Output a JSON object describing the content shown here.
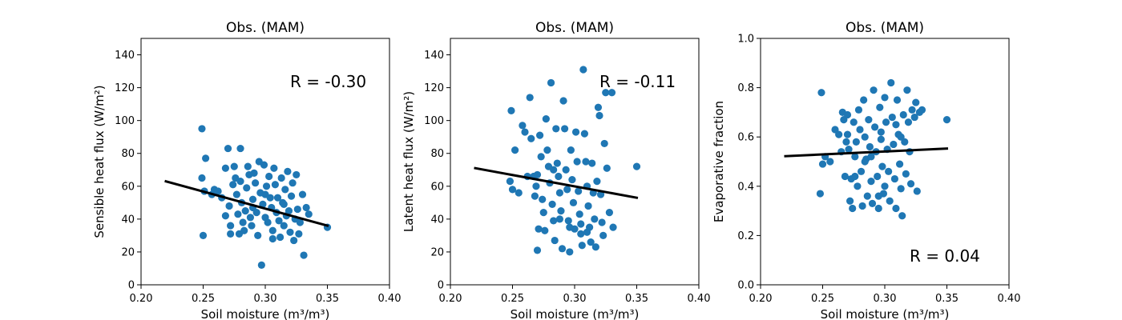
{
  "chart_data": [
    {
      "type": "scatter",
      "title": "Obs. (MAM)",
      "xlabel": "Soil moisture (m³/m³)",
      "ylabel": "Sensible heat flux (W/m²)",
      "xlim": [
        0.2,
        0.4
      ],
      "ylim": [
        0,
        150
      ],
      "xticks": [
        "0.20",
        "0.25",
        "0.30",
        "0.35",
        "0.40"
      ],
      "yticks": [
        "0",
        "20",
        "40",
        "60",
        "80",
        "100",
        "120",
        "140"
      ],
      "annotation": "R = -0.30",
      "annotation_position": "upper-right",
      "fit_line": {
        "x": [
          0.22,
          0.35
        ],
        "y": [
          63,
          36
        ]
      },
      "point_color": "#1f77b4",
      "points": [
        [
          0.249,
          95
        ],
        [
          0.252,
          77
        ],
        [
          0.249,
          65
        ],
        [
          0.25,
          30
        ],
        [
          0.251,
          57
        ],
        [
          0.257,
          55
        ],
        [
          0.259,
          58
        ],
        [
          0.262,
          57
        ],
        [
          0.265,
          53
        ],
        [
          0.268,
          71
        ],
        [
          0.27,
          83
        ],
        [
          0.271,
          48
        ],
        [
          0.272,
          36
        ],
        [
          0.272,
          31
        ],
        [
          0.274,
          61
        ],
        [
          0.275,
          72
        ],
        [
          0.276,
          65
        ],
        [
          0.277,
          55
        ],
        [
          0.278,
          43
        ],
        [
          0.279,
          31
        ],
        [
          0.28,
          83
        ],
        [
          0.281,
          50
        ],
        [
          0.282,
          38
        ],
        [
          0.283,
          33
        ],
        [
          0.284,
          45
        ],
        [
          0.285,
          59
        ],
        [
          0.286,
          72
        ],
        [
          0.287,
          67
        ],
        [
          0.288,
          41
        ],
        [
          0.289,
          36
        ],
        [
          0.29,
          52
        ],
        [
          0.291,
          68
        ],
        [
          0.292,
          62
        ],
        [
          0.293,
          44
        ],
        [
          0.294,
          30
        ],
        [
          0.295,
          75
        ],
        [
          0.296,
          56
        ],
        [
          0.297,
          12
        ],
        [
          0.298,
          49
        ],
        [
          0.299,
          73
        ],
        [
          0.3,
          41
        ],
        [
          0.301,
          60
        ],
        [
          0.302,
          38
        ],
        [
          0.303,
          66
        ],
        [
          0.304,
          53
        ],
        [
          0.305,
          47
        ],
        [
          0.306,
          33
        ],
        [
          0.307,
          71
        ],
        [
          0.308,
          61
        ],
        [
          0.309,
          44
        ],
        [
          0.31,
          53
        ],
        [
          0.311,
          39
        ],
        [
          0.312,
          29
        ],
        [
          0.313,
          65
        ],
        [
          0.314,
          50
        ],
        [
          0.315,
          36
        ],
        [
          0.316,
          58
        ],
        [
          0.317,
          42
        ],
        [
          0.318,
          69
        ],
        [
          0.319,
          45
        ],
        [
          0.32,
          32
        ],
        [
          0.321,
          54
        ],
        [
          0.322,
          62
        ],
        [
          0.323,
          27
        ],
        [
          0.324,
          40
        ],
        [
          0.325,
          67
        ],
        [
          0.326,
          46
        ],
        [
          0.327,
          31
        ],
        [
          0.328,
          38
        ],
        [
          0.33,
          55
        ],
        [
          0.331,
          18
        ],
        [
          0.333,
          47
        ],
        [
          0.335,
          43
        ],
        [
          0.35,
          35
        ],
        [
          0.268,
          42
        ],
        [
          0.28,
          63
        ],
        [
          0.29,
          47
        ],
        [
          0.3,
          55
        ],
        [
          0.306,
          28
        ],
        [
          0.315,
          49
        ]
      ]
    },
    {
      "type": "scatter",
      "title": "Obs. (MAM)",
      "xlabel": "Soil moisture (m³/m³)",
      "ylabel": "Latent heat flux (W/m²)",
      "xlim": [
        0.2,
        0.4
      ],
      "ylim": [
        0,
        150
      ],
      "xticks": [
        "0.20",
        "0.25",
        "0.30",
        "0.35",
        "0.40"
      ],
      "yticks": [
        "0",
        "20",
        "40",
        "60",
        "80",
        "100",
        "120",
        "140"
      ],
      "annotation": "R = -0.11",
      "annotation_position": "upper-right",
      "fit_line": {
        "x": [
          0.22,
          0.35
        ],
        "y": [
          71,
          53
        ]
      },
      "point_color": "#1f77b4",
      "points": [
        [
          0.249,
          106
        ],
        [
          0.252,
          82
        ],
        [
          0.248,
          63
        ],
        [
          0.25,
          58
        ],
        [
          0.255,
          56
        ],
        [
          0.258,
          97
        ],
        [
          0.26,
          93
        ],
        [
          0.262,
          66
        ],
        [
          0.264,
          114
        ],
        [
          0.265,
          89
        ],
        [
          0.267,
          66
        ],
        [
          0.268,
          54
        ],
        [
          0.269,
          60
        ],
        [
          0.27,
          21
        ],
        [
          0.271,
          34
        ],
        [
          0.272,
          91
        ],
        [
          0.273,
          78
        ],
        [
          0.274,
          52
        ],
        [
          0.275,
          44
        ],
        [
          0.276,
          33
        ],
        [
          0.277,
          101
        ],
        [
          0.278,
          82
        ],
        [
          0.279,
          72
        ],
        [
          0.28,
          62
        ],
        [
          0.281,
          123
        ],
        [
          0.282,
          49
        ],
        [
          0.283,
          39
        ],
        [
          0.284,
          27
        ],
        [
          0.285,
          95
        ],
        [
          0.286,
          74
        ],
        [
          0.287,
          66
        ],
        [
          0.288,
          56
        ],
        [
          0.289,
          45
        ],
        [
          0.29,
          22
        ],
        [
          0.291,
          112
        ],
        [
          0.292,
          95
        ],
        [
          0.293,
          70
        ],
        [
          0.294,
          58
        ],
        [
          0.295,
          39
        ],
        [
          0.296,
          20
        ],
        [
          0.297,
          82
        ],
        [
          0.298,
          64
        ],
        [
          0.299,
          50
        ],
        [
          0.3,
          34
        ],
        [
          0.301,
          93
        ],
        [
          0.302,
          75
        ],
        [
          0.303,
          57
        ],
        [
          0.304,
          43
        ],
        [
          0.305,
          31
        ],
        [
          0.306,
          24
        ],
        [
          0.307,
          131
        ],
        [
          0.308,
          92
        ],
        [
          0.309,
          75
        ],
        [
          0.31,
          60
        ],
        [
          0.311,
          48
        ],
        [
          0.312,
          35
        ],
        [
          0.313,
          26
        ],
        [
          0.314,
          74
        ],
        [
          0.315,
          56
        ],
        [
          0.316,
          40
        ],
        [
          0.317,
          23
        ],
        [
          0.318,
          63
        ],
        [
          0.319,
          108
        ],
        [
          0.32,
          103
        ],
        [
          0.321,
          55
        ],
        [
          0.322,
          38
        ],
        [
          0.323,
          30
        ],
        [
          0.324,
          86
        ],
        [
          0.325,
          117
        ],
        [
          0.326,
          71
        ],
        [
          0.328,
          44
        ],
        [
          0.33,
          117
        ],
        [
          0.331,
          35
        ],
        [
          0.35,
          72
        ],
        [
          0.27,
          67
        ],
        [
          0.288,
          40
        ],
        [
          0.305,
          37
        ],
        [
          0.296,
          35
        ],
        [
          0.283,
          70
        ],
        [
          0.31,
          32
        ]
      ]
    },
    {
      "type": "scatter",
      "title": "Obs. (MAM)",
      "xlabel": "Soil moisture (m³/m³)",
      "ylabel": "Evaporative fraction",
      "xlim": [
        0.2,
        0.4
      ],
      "ylim": [
        0.0,
        1.0
      ],
      "xticks": [
        "0.20",
        "0.25",
        "0.30",
        "0.35",
        "0.40"
      ],
      "yticks": [
        "0.0",
        "0.2",
        "0.4",
        "0.6",
        "0.8",
        "1.0"
      ],
      "annotation": "R = 0.04",
      "annotation_position": "lower-right",
      "fit_line": {
        "x": [
          0.22,
          0.35
        ],
        "y": [
          0.522,
          0.553
        ]
      },
      "point_color": "#1f77b4",
      "points": [
        [
          0.249,
          0.78
        ],
        [
          0.248,
          0.37
        ],
        [
          0.25,
          0.49
        ],
        [
          0.252,
          0.52
        ],
        [
          0.256,
          0.5
        ],
        [
          0.26,
          0.63
        ],
        [
          0.263,
          0.61
        ],
        [
          0.265,
          0.54
        ],
        [
          0.266,
          0.7
        ],
        [
          0.267,
          0.67
        ],
        [
          0.268,
          0.44
        ],
        [
          0.269,
          0.58
        ],
        [
          0.27,
          0.69
        ],
        [
          0.271,
          0.55
        ],
        [
          0.272,
          0.34
        ],
        [
          0.273,
          0.43
        ],
        [
          0.274,
          0.31
        ],
        [
          0.275,
          0.66
        ],
        [
          0.276,
          0.52
        ],
        [
          0.277,
          0.58
        ],
        [
          0.278,
          0.4
        ],
        [
          0.279,
          0.71
        ],
        [
          0.28,
          0.63
        ],
        [
          0.281,
          0.46
        ],
        [
          0.282,
          0.32
        ],
        [
          0.283,
          0.75
        ],
        [
          0.284,
          0.6
        ],
        [
          0.285,
          0.51
        ],
        [
          0.286,
          0.36
        ],
        [
          0.287,
          0.67
        ],
        [
          0.288,
          0.56
        ],
        [
          0.289,
          0.42
        ],
        [
          0.29,
          0.33
        ],
        [
          0.291,
          0.79
        ],
        [
          0.292,
          0.64
        ],
        [
          0.293,
          0.54
        ],
        [
          0.294,
          0.44
        ],
        [
          0.295,
          0.31
        ],
        [
          0.296,
          0.72
        ],
        [
          0.297,
          0.59
        ],
        [
          0.298,
          0.48
        ],
        [
          0.299,
          0.37
        ],
        [
          0.3,
          0.76
        ],
        [
          0.301,
          0.66
        ],
        [
          0.302,
          0.55
        ],
        [
          0.303,
          0.46
        ],
        [
          0.304,
          0.34
        ],
        [
          0.305,
          0.82
        ],
        [
          0.306,
          0.68
        ],
        [
          0.307,
          0.57
        ],
        [
          0.308,
          0.43
        ],
        [
          0.309,
          0.31
        ],
        [
          0.31,
          0.75
        ],
        [
          0.311,
          0.61
        ],
        [
          0.312,
          0.49
        ],
        [
          0.313,
          0.39
        ],
        [
          0.314,
          0.28
        ],
        [
          0.315,
          0.69
        ],
        [
          0.316,
          0.58
        ],
        [
          0.317,
          0.45
        ],
        [
          0.318,
          0.79
        ],
        [
          0.319,
          0.66
        ],
        [
          0.32,
          0.54
        ],
        [
          0.321,
          0.41
        ],
        [
          0.322,
          0.71
        ],
        [
          0.324,
          0.68
        ],
        [
          0.325,
          0.74
        ],
        [
          0.326,
          0.38
        ],
        [
          0.328,
          0.7
        ],
        [
          0.33,
          0.71
        ],
        [
          0.35,
          0.67
        ],
        [
          0.284,
          0.5
        ],
        [
          0.295,
          0.36
        ],
        [
          0.3,
          0.4
        ],
        [
          0.27,
          0.61
        ],
        [
          0.289,
          0.52
        ],
        [
          0.309,
          0.65
        ],
        [
          0.313,
          0.6
        ],
        [
          0.276,
          0.44
        ],
        [
          0.297,
          0.62
        ]
      ]
    }
  ]
}
